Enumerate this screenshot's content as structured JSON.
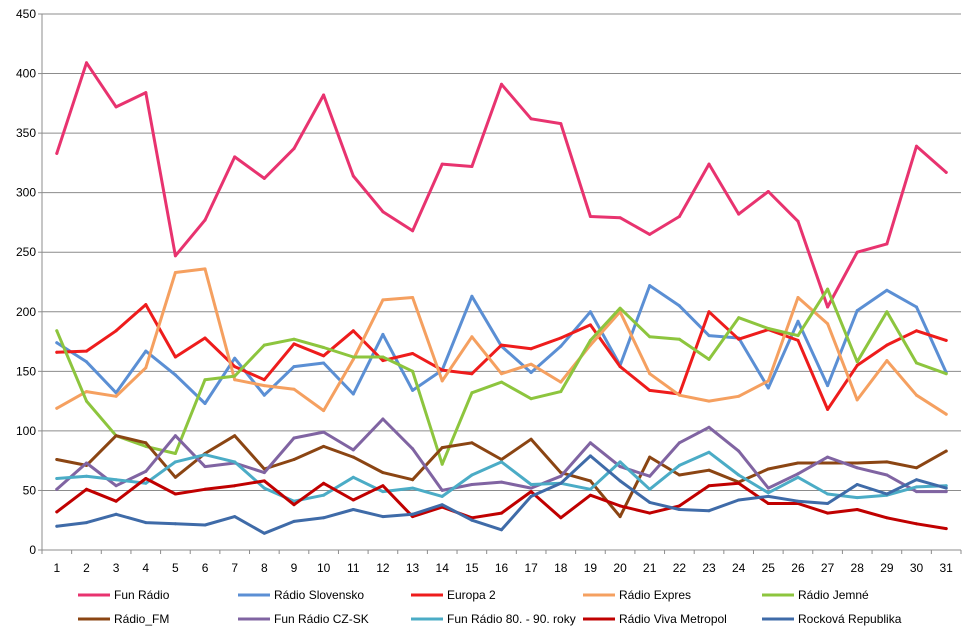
{
  "chart_data": {
    "type": "line",
    "title": "",
    "xlabel": "",
    "ylabel": "",
    "ylim": [
      0,
      450
    ],
    "yticks": [
      0,
      50,
      100,
      150,
      200,
      250,
      300,
      350,
      400,
      450
    ],
    "grid": "horizontal",
    "legend_position": "bottom",
    "x": [
      1,
      2,
      3,
      4,
      5,
      6,
      7,
      8,
      9,
      10,
      11,
      12,
      13,
      14,
      15,
      16,
      17,
      18,
      19,
      20,
      21,
      22,
      23,
      24,
      25,
      26,
      27,
      28,
      29,
      30,
      31
    ],
    "series": [
      {
        "name": "Fun Rádio",
        "color": "#e8336f",
        "values": [
          333,
          409,
          372,
          384,
          247,
          277,
          330,
          312,
          337,
          382,
          314,
          284,
          268,
          324,
          322,
          391,
          362,
          358,
          280,
          279,
          265,
          280,
          324,
          282,
          301,
          276,
          204,
          250,
          257,
          339,
          317
        ]
      },
      {
        "name": "Rádio Slovensko",
        "color": "#5b8fd4",
        "values": [
          174,
          158,
          132,
          167,
          147,
          123,
          161,
          130,
          154,
          157,
          131,
          181,
          134,
          151,
          213,
          171,
          149,
          171,
          200,
          155,
          222,
          205,
          180,
          178,
          136,
          192,
          138,
          201,
          218,
          204,
          149
        ]
      },
      {
        "name": "Europa 2",
        "color": "#ee1c1c",
        "values": [
          166,
          167,
          184,
          206,
          162,
          178,
          154,
          143,
          173,
          163,
          184,
          159,
          165,
          151,
          148,
          172,
          169,
          178,
          189,
          154,
          134,
          131,
          200,
          177,
          185,
          176,
          118,
          155,
          172,
          184,
          176
        ]
      },
      {
        "name": "Rádio Expres",
        "color": "#f5a060",
        "values": [
          119,
          133,
          129,
          153,
          233,
          236,
          143,
          138,
          135,
          117,
          160,
          210,
          212,
          142,
          179,
          148,
          156,
          141,
          172,
          200,
          148,
          130,
          125,
          129,
          142,
          212,
          190,
          126,
          159,
          130,
          114
        ]
      },
      {
        "name": "Rádio Jemné",
        "color": "#8dc53e",
        "values": [
          184,
          125,
          96,
          87,
          81,
          143,
          146,
          172,
          177,
          170,
          162,
          162,
          150,
          72,
          132,
          141,
          127,
          133,
          176,
          203,
          179,
          177,
          160,
          195,
          186,
          180,
          219,
          158,
          200,
          157,
          148
        ]
      },
      {
        "name": "Rádio_FM",
        "color": "#8b4513",
        "values": [
          76,
          71,
          96,
          90,
          61,
          81,
          96,
          68,
          76,
          87,
          78,
          65,
          59,
          86,
          90,
          76,
          93,
          65,
          58,
          28,
          78,
          63,
          67,
          57,
          68,
          73,
          73,
          73,
          74,
          69,
          83
        ]
      },
      {
        "name": "Fun Rádio CZ-SK",
        "color": "#8064a2",
        "values": [
          51,
          73,
          54,
          66,
          96,
          70,
          73,
          65,
          94,
          99,
          84,
          110,
          85,
          50,
          55,
          57,
          52,
          62,
          90,
          70,
          62,
          90,
          103,
          83,
          52,
          64,
          78,
          69,
          63,
          49,
          49
        ]
      },
      {
        "name": "Fun Rádio 80. - 90. roky",
        "color": "#4bacc6",
        "values": [
          60,
          62,
          59,
          56,
          74,
          80,
          74,
          52,
          41,
          46,
          61,
          49,
          52,
          45,
          63,
          74,
          55,
          56,
          51,
          74,
          51,
          71,
          82,
          63,
          48,
          61,
          47,
          44,
          46,
          53,
          54
        ]
      },
      {
        "name": "Rádio Viva Metropol",
        "color": "#c00000",
        "values": [
          32,
          51,
          41,
          60,
          47,
          51,
          54,
          58,
          38,
          56,
          42,
          54,
          28,
          36,
          27,
          31,
          49,
          27,
          46,
          37,
          31,
          37,
          54,
          56,
          39,
          39,
          31,
          34,
          27,
          22,
          18
        ]
      },
      {
        "name": "Rocková Republika",
        "color": "#3f6ba8",
        "values": [
          20,
          23,
          30,
          23,
          22,
          21,
          28,
          14,
          24,
          27,
          34,
          28,
          30,
          38,
          25,
          17,
          45,
          56,
          79,
          58,
          40,
          34,
          33,
          42,
          45,
          41,
          39,
          55,
          47,
          59,
          52
        ]
      }
    ]
  }
}
